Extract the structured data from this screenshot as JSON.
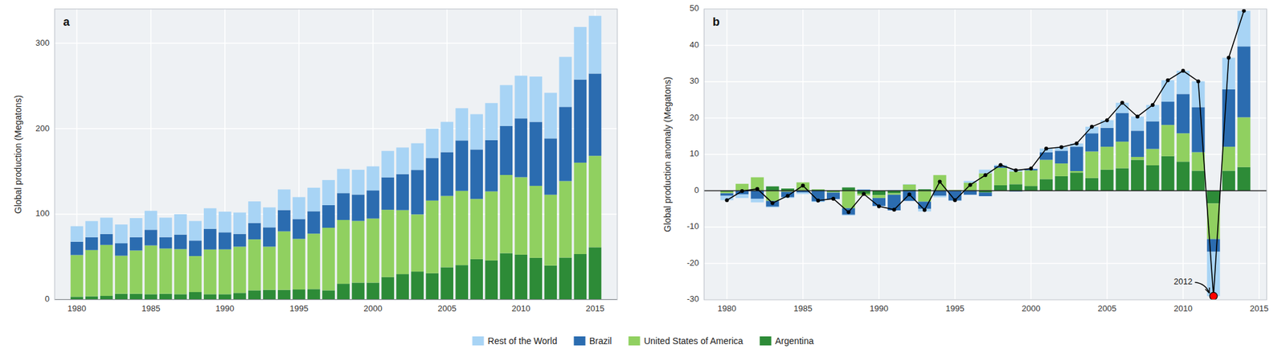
{
  "chart_data": [
    {
      "type": "bar",
      "stacked": true,
      "title": "a",
      "y_label": "Global production (Megatons)",
      "x": [
        1980,
        1981,
        1982,
        1983,
        1984,
        1985,
        1986,
        1987,
        1988,
        1989,
        1990,
        1991,
        1992,
        1993,
        1994,
        1995,
        1996,
        1997,
        1998,
        1999,
        2000,
        2001,
        2002,
        2003,
        2004,
        2005,
        2006,
        2007,
        2008,
        2009,
        2010,
        2011,
        2012,
        2013,
        2014,
        2015
      ],
      "xlim": [
        1978.5,
        2016.5
      ],
      "xticks": [
        1980,
        1985,
        1990,
        1995,
        2000,
        2005,
        2010,
        2015
      ],
      "ylim": [
        0,
        340
      ],
      "yticks": [
        0,
        100,
        200,
        300
      ],
      "grid": true,
      "legend": "bottom",
      "series": [
        {
          "name": "Argentina",
          "color": "#2d8b37",
          "values": [
            3.5,
            4.0,
            4.5,
            7.0,
            7.0,
            6.5,
            7.0,
            6.5,
            9.0,
            6.5,
            6.5,
            8.0,
            11.0,
            11.5,
            11.5,
            12.0,
            12.5,
            11.0,
            18.7,
            20.0,
            20.0,
            26.5,
            30.0,
            33.0,
            31.0,
            38.0,
            40.5,
            47.5,
            46.0,
            54.5,
            52.7,
            49.0,
            40.0,
            49.3,
            53.4,
            61.4
          ]
        },
        {
          "name": "United States of America",
          "color": "#90d060",
          "values": [
            48.8,
            54.1,
            59.6,
            44.5,
            50.6,
            57.0,
            52.9,
            52.7,
            42.1,
            52.3,
            52.4,
            54.1,
            59.6,
            50.6,
            68.5,
            59.2,
            64.8,
            73.2,
            74.6,
            72.2,
            75.0,
            78.7,
            74.8,
            66.8,
            85.0,
            83.4,
            86.8,
            70.4,
            80.7,
            91.4,
            90.6,
            84.2,
            82.8,
            89.5,
            106.9,
            106.9
          ]
        },
        {
          "name": "Brazil",
          "color": "#2b6cb0",
          "values": [
            15.5,
            15.0,
            12.8,
            14.6,
            15.5,
            18.3,
            13.3,
            17.0,
            18.0,
            24.1,
            19.9,
            14.9,
            19.2,
            22.6,
            24.9,
            23.2,
            26.2,
            26.4,
            31.4,
            30.8,
            32.8,
            37.9,
            42.1,
            52.0,
            49.8,
            51.2,
            59.0,
            57.8,
            59.9,
            57.3,
            68.7,
            74.8,
            65.8,
            86.7,
            97.2,
            96.2
          ]
        },
        {
          "name": "Rest of the World",
          "color": "#a8d4f5",
          "values": [
            18.2,
            18.9,
            19.1,
            21.9,
            22.4,
            22.2,
            22.8,
            23.8,
            23.0,
            24.1,
            24.2,
            25.0,
            25.2,
            23.3,
            24.1,
            25.6,
            27.5,
            29.4,
            28.3,
            29.0,
            28.2,
            30.9,
            31.1,
            31.2,
            34.2,
            35.4,
            37.7,
            41.3,
            43.4,
            47.8,
            50.0,
            53.0,
            53.4,
            58.5,
            61.5,
            67.5
          ]
        }
      ]
    },
    {
      "type": "bar",
      "stacked": true,
      "title": "b",
      "y_label": "Global production anomaly (Megatons)",
      "x": [
        1980,
        1981,
        1982,
        1983,
        1984,
        1985,
        1986,
        1987,
        1988,
        1989,
        1990,
        1991,
        1992,
        1993,
        1994,
        1995,
        1996,
        1997,
        1998,
        1999,
        2000,
        2001,
        2002,
        2003,
        2004,
        2005,
        2006,
        2007,
        2008,
        2009,
        2010,
        2011,
        2012,
        2013,
        2014
      ],
      "xlim": [
        1978.5,
        2015.5
      ],
      "xticks": [
        1980,
        1985,
        1990,
        1995,
        2000,
        2005,
        2010,
        2015
      ],
      "ylim": [
        -30,
        50
      ],
      "yticks": [
        -30,
        -20,
        -10,
        0,
        10,
        20,
        30,
        40,
        50
      ],
      "grid": true,
      "series": [
        {
          "color": "#2d8b37",
          "values": [
            -0.3,
            0.1,
            0.2,
            1.2,
            0.6,
            0.2,
            0.3,
            -0.3,
            0.9,
            -0.8,
            -1.2,
            -0.7,
            0.3,
            0.4,
            0.1,
            -0.1,
            0.2,
            -0.5,
            1.5,
            1.8,
            1.3,
            3.2,
            4.0,
            5.0,
            3.5,
            5.8,
            6.2,
            8.5,
            7.0,
            9.5,
            8.0,
            5.5,
            -3.5,
            5.5,
            6.5
          ]
        },
        {
          "color": "#90d060",
          "values": [
            -0.4,
            1.8,
            3.5,
            -2.8,
            -0.3,
            2.1,
            0.1,
            -0.2,
            -4.8,
            -0.5,
            -0.8,
            -0.4,
            1.4,
            -3.0,
            4.2,
            0.2,
            2.0,
            4.8,
            4.8,
            3.5,
            4.3,
            5.3,
            3.5,
            0.4,
            7.3,
            6.3,
            7.3,
            0.8,
            4.5,
            8.6,
            7.8,
            5.1,
            -9.8,
            6.6,
            13.7
          ]
        },
        {
          "color": "#2b6cb0",
          "values": [
            -0.7,
            -1.0,
            -2.2,
            -1.6,
            -1.5,
            -0.5,
            -2.9,
            -1.8,
            -1.8,
            0.3,
            -2.2,
            -4.3,
            -2.8,
            -2.0,
            -1.4,
            -2.6,
            -1.1,
            -1.0,
            0.5,
            -0.2,
            0.4,
            2.1,
            3.5,
            6.7,
            5.0,
            5.2,
            7.9,
            7.2,
            7.6,
            6.4,
            10.8,
            12.4,
            -3.5,
            15.8,
            19.5
          ]
        },
        {
          "color": "#a8d4f5",
          "values": [
            -1.2,
            -1.0,
            -1.0,
            -0.2,
            -0.2,
            -0.4,
            -0.2,
            0.1,
            -0.2,
            0.1,
            -0.1,
            0.2,
            0.1,
            -0.7,
            -0.4,
            -0.1,
            0.5,
            1.0,
            0.3,
            0.5,
            0.1,
            1.0,
            1.0,
            0.9,
            1.8,
            2.1,
            2.8,
            3.9,
            4.5,
            5.9,
            6.4,
            7.1,
            -12.2,
            8.7,
            9.8
          ]
        },
        {
          "type": "line",
          "color": "#000000",
          "marker": "circle",
          "values": [
            -2.6,
            -0.1,
            0.5,
            -3.4,
            -1.4,
            1.4,
            -2.7,
            -2.2,
            -5.9,
            -0.9,
            -4.3,
            -5.2,
            -1.0,
            -5.3,
            2.5,
            -2.6,
            1.6,
            4.3,
            7.1,
            5.6,
            6.1,
            11.6,
            12.0,
            13.0,
            17.6,
            19.4,
            24.2,
            20.4,
            23.6,
            30.4,
            33.0,
            30.1,
            -29.0,
            36.6,
            49.5
          ]
        }
      ],
      "annotations": [
        {
          "text": "2012",
          "x": 2010.0,
          "y": -24.0,
          "point_x": 2012,
          "point_y": -29.0,
          "color": "red"
        }
      ]
    }
  ]
}
